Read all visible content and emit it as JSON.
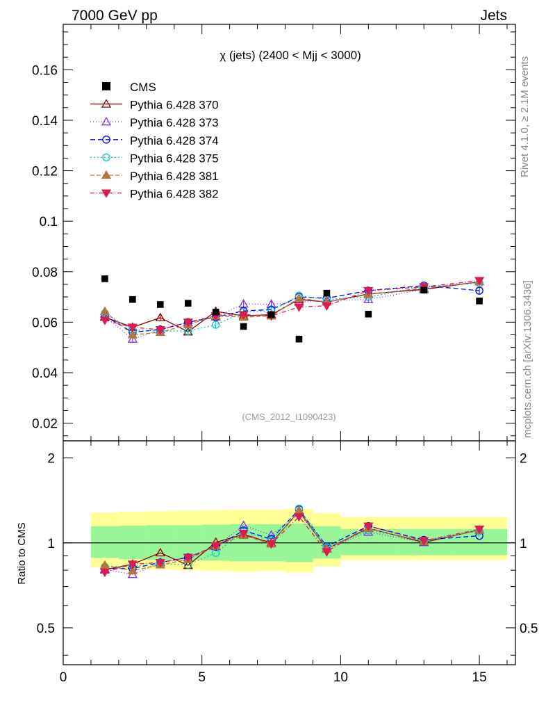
{
  "header": {
    "left": "7000 GeV pp",
    "right": "Jets"
  },
  "side_labels": {
    "rivet": "Rivet 4.1.0, ≥ 2.1M events",
    "mcplots": "mcplots.cern.ch [arXiv:1306.3436]"
  },
  "colors": {
    "cms": "#000000",
    "p370": "#8b0000",
    "p373": "#8a2be2",
    "p374": "#0000ee",
    "p375": "#00c8c8",
    "p381": "#b07840",
    "p382": "#dc1c50",
    "band_inner": "#98f598",
    "band_outer": "#ffff96"
  },
  "chart_data": {
    "type": "line",
    "title": "χ (jets) (2400 < Mjj < 3000)",
    "watermark": "(CMS_2012_I1090423)",
    "xlabel": "",
    "ylabel": "",
    "ratio_ylabel": "Ratio to CMS",
    "xlim": [
      0,
      16.3
    ],
    "ylim": [
      0.013,
      0.178
    ],
    "ratio_ylim": [
      0.37,
      2.3
    ],
    "x_ticks": [
      0,
      5,
      10,
      15
    ],
    "y_ticks": [
      0.02,
      0.04,
      0.06,
      0.08,
      0.1,
      0.12,
      0.14,
      0.16
    ],
    "ratio_y_ticks": [
      0.5,
      1,
      2
    ],
    "ratio_y_tick_labels": [
      "0.5",
      "1",
      "2"
    ],
    "bins": [
      [
        1,
        2
      ],
      [
        2,
        3
      ],
      [
        3,
        4
      ],
      [
        4,
        5
      ],
      [
        5,
        6
      ],
      [
        6,
        7
      ],
      [
        7,
        8
      ],
      [
        8,
        9
      ],
      [
        9,
        10
      ],
      [
        10,
        12
      ],
      [
        12,
        14
      ],
      [
        14,
        16
      ]
    ],
    "x": [
      1.5,
      2.5,
      3.5,
      4.5,
      5.5,
      6.5,
      7.5,
      8.5,
      9.5,
      11,
      13,
      15
    ],
    "band_inner": [
      [
        0.885,
        1.145
      ],
      [
        0.875,
        1.15
      ],
      [
        0.87,
        1.155
      ],
      [
        0.87,
        1.155
      ],
      [
        0.865,
        1.16
      ],
      [
        0.86,
        1.165
      ],
      [
        0.86,
        1.165
      ],
      [
        0.855,
        1.17
      ],
      [
        0.88,
        1.145
      ],
      [
        0.905,
        1.12
      ],
      [
        0.905,
        1.12
      ],
      [
        0.905,
        1.12
      ]
    ],
    "band_outer": [
      [
        0.82,
        1.28
      ],
      [
        0.81,
        1.29
      ],
      [
        0.805,
        1.295
      ],
      [
        0.8,
        1.3
      ],
      [
        0.795,
        1.305
      ],
      [
        0.79,
        1.31
      ],
      [
        0.795,
        1.31
      ],
      [
        0.785,
        1.32
      ],
      [
        0.825,
        1.275
      ],
      [
        0.87,
        1.235
      ],
      [
        0.87,
        1.235
      ],
      [
        0.87,
        1.235
      ]
    ],
    "cms": {
      "name": "CMS",
      "values": [
        0.0772,
        0.069,
        0.067,
        0.0675,
        0.064,
        0.0583,
        0.063,
        0.0533,
        0.0715,
        0.0632,
        0.0727,
        0.0684
      ]
    },
    "series": [
      {
        "key": "p370",
        "name": "Pythia 6.428 370",
        "marker": "tri_up_open",
        "dash": "",
        "values": [
          0.062,
          0.058,
          0.0618,
          0.0562,
          0.0643,
          0.0625,
          0.063,
          0.069,
          0.068,
          0.0712,
          0.073,
          0.076
        ]
      },
      {
        "key": "p373",
        "name": "Pythia 6.428 373",
        "marker": "tri_up_open",
        "dash": "1,3",
        "values": [
          0.0623,
          0.0533,
          0.057,
          0.0598,
          0.0621,
          0.0672,
          0.0671,
          0.068,
          0.0685,
          0.069,
          0.073,
          0.076
        ]
      },
      {
        "key": "p374",
        "name": "Pythia 6.428 374",
        "marker": "circle_open",
        "dash": "7,4",
        "values": [
          0.0625,
          0.056,
          0.0571,
          0.06,
          0.062,
          0.0645,
          0.065,
          0.07,
          0.0695,
          0.0725,
          0.0745,
          0.0725
        ]
      },
      {
        "key": "p375",
        "name": "Pythia 6.428 375",
        "marker": "circle_open",
        "dash": "2,3",
        "values": [
          0.0635,
          0.057,
          0.0565,
          0.0565,
          0.059,
          0.064,
          0.0645,
          0.0705,
          0.069,
          0.07,
          0.074,
          0.0755
        ]
      },
      {
        "key": "p381",
        "name": "Pythia 6.428 381",
        "marker": "tri_up_filled",
        "dash": "6,3",
        "values": [
          0.0643,
          0.055,
          0.056,
          0.059,
          0.0625,
          0.062,
          0.0625,
          0.0695,
          0.068,
          0.071,
          0.0735,
          0.076
        ]
      },
      {
        "key": "p382",
        "name": "Pythia 6.428 382",
        "marker": "tri_down_filled",
        "dash": "6,3,1,3",
        "values": [
          0.0608,
          0.058,
          0.057,
          0.06,
          0.0625,
          0.063,
          0.0625,
          0.066,
          0.0665,
          0.0725,
          0.074,
          0.0765
        ]
      }
    ]
  }
}
